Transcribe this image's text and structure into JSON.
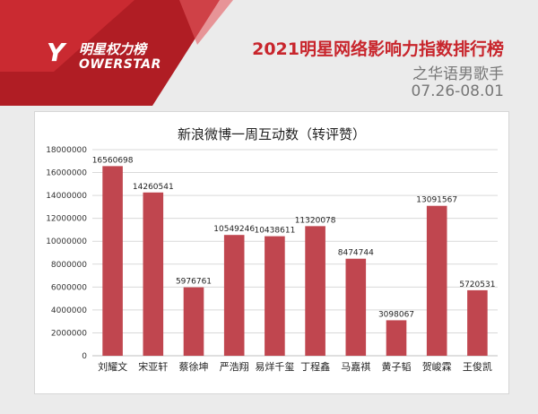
{
  "header": {
    "logo_cn": "明星权力榜",
    "logo_en": "OWERSTAR",
    "logo_mark": "Y",
    "title": "2021明星网络影响力指数排行榜",
    "subtitle": "之华语男歌手",
    "date_range": "07.26-08.01"
  },
  "colors": {
    "brand_red": "#c8252c",
    "bar": "#c0464f"
  },
  "chart_data": {
    "type": "bar",
    "title": "新浪微博一周互动数（转评赞）",
    "xlabel": "",
    "ylabel": "",
    "categories": [
      "刘耀文",
      "宋亚轩",
      "蔡徐坤",
      "严浩翔",
      "易烊千玺",
      "丁程鑫",
      "马嘉祺",
      "黄子韬",
      "贺峻霖",
      "王俊凯"
    ],
    "values": [
      16560698,
      14260541,
      5976761,
      10549246,
      10438611,
      11320078,
      8474744,
      3098067,
      13091567,
      5720531
    ],
    "ylim": [
      0,
      18000000
    ],
    "yticks": [
      "0",
      "2000000",
      "4000000",
      "6000000",
      "8000000",
      "10000000",
      "12000000",
      "14000000",
      "16000000",
      "18000000"
    ],
    "grid": true,
    "legend": "none"
  }
}
